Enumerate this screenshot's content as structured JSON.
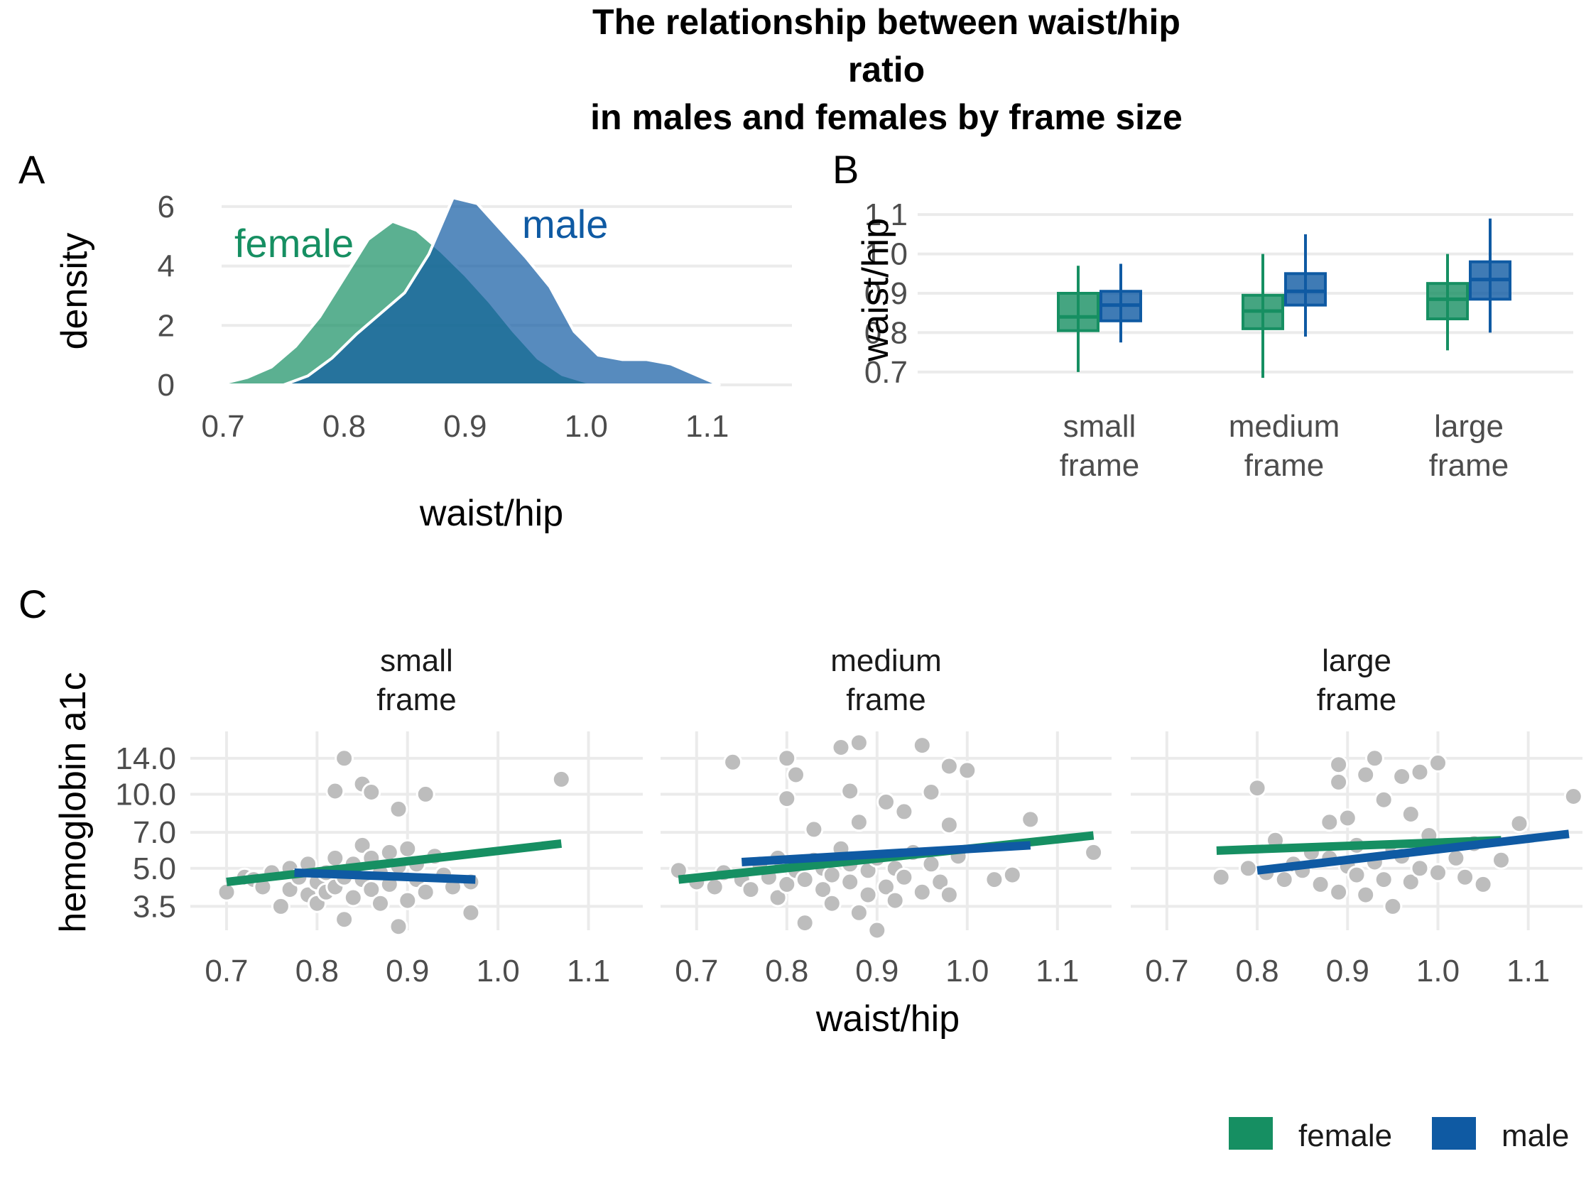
{
  "title_lines": [
    "The relationship between waist/hip",
    "ratio",
    "in males and females by frame size"
  ],
  "colors": {
    "female": "#168f62",
    "male": "#0f5aa3",
    "point": "#bdbdbd",
    "grid": "#ebebeb"
  },
  "legend": [
    {
      "key": "female",
      "label": "female"
    },
    {
      "key": "male",
      "label": "male"
    }
  ],
  "chart_data": [
    {
      "panel": "A",
      "type": "area",
      "xlabel": "waist/hip",
      "ylabel": "density",
      "xlim": [
        0.68,
        1.17
      ],
      "ylim": [
        0,
        6.5
      ],
      "xticks": [
        "0.7",
        "0.8",
        "0.9",
        "1.0",
        "1.1"
      ],
      "yticks": [
        "0",
        "2",
        "4",
        "6"
      ],
      "series": [
        {
          "name": "female",
          "label": "female",
          "x": [
            0.68,
            0.7,
            0.72,
            0.74,
            0.76,
            0.78,
            0.8,
            0.82,
            0.84,
            0.86,
            0.88,
            0.9,
            0.92,
            0.94,
            0.96,
            0.98,
            1.0,
            1.02
          ],
          "y": [
            0.0,
            0.05,
            0.25,
            0.6,
            1.3,
            2.3,
            3.6,
            4.9,
            5.5,
            5.2,
            4.5,
            3.7,
            2.8,
            1.8,
            0.9,
            0.35,
            0.1,
            0.0
          ]
        },
        {
          "name": "male",
          "label": "male",
          "x": [
            0.75,
            0.77,
            0.79,
            0.81,
            0.83,
            0.85,
            0.87,
            0.89,
            0.91,
            0.93,
            0.95,
            0.97,
            0.99,
            1.01,
            1.03,
            1.05,
            1.07,
            1.09,
            1.11
          ],
          "y": [
            0.0,
            0.3,
            0.9,
            1.7,
            2.4,
            3.1,
            4.4,
            6.3,
            6.1,
            5.2,
            4.3,
            3.3,
            1.8,
            1.0,
            0.85,
            0.85,
            0.7,
            0.35,
            0.0
          ]
        }
      ]
    },
    {
      "panel": "B",
      "type": "box",
      "ylabel": "waist/hip",
      "ylim": [
        0.66,
        1.14
      ],
      "yticks": [
        "0.7",
        "0.8",
        "0.9",
        "1.0",
        "1.1"
      ],
      "categories": [
        [
          "small",
          "frame"
        ],
        [
          "medium",
          "frame"
        ],
        [
          "large",
          "frame"
        ]
      ],
      "series": [
        {
          "name": "female",
          "boxes": [
            {
              "min": 0.7,
              "q1": 0.805,
              "median": 0.84,
              "q3": 0.9,
              "max": 0.97
            },
            {
              "min": 0.685,
              "q1": 0.81,
              "median": 0.855,
              "q3": 0.895,
              "max": 1.0
            },
            {
              "min": 0.755,
              "q1": 0.835,
              "median": 0.885,
              "q3": 0.925,
              "max": 1.0
            }
          ]
        },
        {
          "name": "male",
          "boxes": [
            {
              "min": 0.775,
              "q1": 0.83,
              "median": 0.87,
              "q3": 0.905,
              "max": 0.975
            },
            {
              "min": 0.79,
              "q1": 0.87,
              "median": 0.905,
              "q3": 0.95,
              "max": 1.05
            },
            {
              "min": 0.8,
              "q1": 0.885,
              "median": 0.935,
              "q3": 0.98,
              "max": 1.09
            }
          ]
        }
      ]
    },
    {
      "panel": "C",
      "type": "scatter",
      "xlabel": "waist/hip",
      "ylabel": "hemoglobin a1c",
      "xlim": [
        0.66,
        1.16
      ],
      "ylim_log": [
        2.8,
        18.0
      ],
      "xticks": [
        "0.7",
        "0.8",
        "0.9",
        "1.0",
        "1.1"
      ],
      "yticks": [
        "3.5",
        "5.0",
        "7.0",
        "10.0",
        "14.0"
      ],
      "facets": [
        {
          "strip": [
            "small",
            "frame"
          ],
          "points": [
            [
              0.7,
              4.0
            ],
            [
              0.72,
              4.6
            ],
            [
              0.73,
              4.5
            ],
            [
              0.74,
              4.2
            ],
            [
              0.75,
              4.8
            ],
            [
              0.76,
              3.5
            ],
            [
              0.77,
              4.1
            ],
            [
              0.77,
              5.0
            ],
            [
              0.78,
              4.6
            ],
            [
              0.79,
              3.9
            ],
            [
              0.79,
              5.2
            ],
            [
              0.8,
              3.6
            ],
            [
              0.8,
              4.4
            ],
            [
              0.81,
              4.0
            ],
            [
              0.81,
              4.8
            ],
            [
              0.82,
              5.5
            ],
            [
              0.82,
              4.2
            ],
            [
              0.82,
              10.3
            ],
            [
              0.83,
              14.0
            ],
            [
              0.83,
              3.1
            ],
            [
              0.83,
              4.6
            ],
            [
              0.84,
              5.2
            ],
            [
              0.84,
              3.8
            ],
            [
              0.85,
              4.5
            ],
            [
              0.85,
              6.2
            ],
            [
              0.85,
              11.0
            ],
            [
              0.86,
              10.2
            ],
            [
              0.86,
              5.5
            ],
            [
              0.86,
              4.1
            ],
            [
              0.87,
              3.6
            ],
            [
              0.87,
              4.8
            ],
            [
              0.88,
              5.8
            ],
            [
              0.88,
              4.3
            ],
            [
              0.89,
              8.7
            ],
            [
              0.89,
              2.9
            ],
            [
              0.89,
              5.1
            ],
            [
              0.9,
              6.0
            ],
            [
              0.9,
              3.7
            ],
            [
              0.91,
              4.5
            ],
            [
              0.91,
              5.2
            ],
            [
              0.92,
              10.0
            ],
            [
              0.92,
              4.0
            ],
            [
              0.93,
              5.6
            ],
            [
              0.94,
              4.7
            ],
            [
              0.95,
              4.2
            ],
            [
              0.97,
              4.4
            ],
            [
              0.97,
              3.3
            ],
            [
              1.07,
              11.5
            ]
          ],
          "lines": [
            {
              "series": "female",
              "x": [
                0.7,
                1.07
              ],
              "y": [
                4.4,
                6.3
              ]
            },
            {
              "series": "male",
              "x": [
                0.775,
                0.975
              ],
              "y": [
                4.8,
                4.5
              ]
            }
          ]
        },
        {
          "strip": [
            "medium",
            "frame"
          ],
          "points": [
            [
              0.68,
              4.9
            ],
            [
              0.7,
              4.4
            ],
            [
              0.72,
              4.2
            ],
            [
              0.73,
              4.8
            ],
            [
              0.74,
              13.5
            ],
            [
              0.75,
              4.5
            ],
            [
              0.76,
              4.1
            ],
            [
              0.77,
              5.2
            ],
            [
              0.78,
              4.6
            ],
            [
              0.79,
              3.8
            ],
            [
              0.79,
              5.5
            ],
            [
              0.8,
              4.3
            ],
            [
              0.8,
              9.6
            ],
            [
              0.8,
              14.0
            ],
            [
              0.81,
              4.9
            ],
            [
              0.81,
              12.0
            ],
            [
              0.82,
              3.0
            ],
            [
              0.82,
              4.5
            ],
            [
              0.83,
              5.4
            ],
            [
              0.83,
              7.2
            ],
            [
              0.84,
              4.1
            ],
            [
              0.84,
              5.0
            ],
            [
              0.85,
              4.7
            ],
            [
              0.85,
              3.6
            ],
            [
              0.86,
              6.0
            ],
            [
              0.86,
              15.5
            ],
            [
              0.87,
              10.3
            ],
            [
              0.87,
              4.4
            ],
            [
              0.87,
              5.2
            ],
            [
              0.88,
              3.3
            ],
            [
              0.88,
              7.7
            ],
            [
              0.88,
              16.2
            ],
            [
              0.89,
              4.9
            ],
            [
              0.89,
              3.9
            ],
            [
              0.9,
              5.5
            ],
            [
              0.9,
              2.8
            ],
            [
              0.91,
              4.2
            ],
            [
              0.91,
              9.3
            ],
            [
              0.92,
              5.0
            ],
            [
              0.92,
              3.7
            ],
            [
              0.93,
              8.5
            ],
            [
              0.93,
              4.6
            ],
            [
              0.94,
              5.8
            ],
            [
              0.95,
              4.0
            ],
            [
              0.95,
              15.8
            ],
            [
              0.96,
              10.2
            ],
            [
              0.96,
              5.2
            ],
            [
              0.97,
              4.4
            ],
            [
              0.98,
              13.0
            ],
            [
              0.98,
              7.5
            ],
            [
              0.98,
              3.9
            ],
            [
              0.99,
              5.6
            ],
            [
              1.0,
              12.5
            ],
            [
              1.03,
              4.5
            ],
            [
              1.05,
              4.7
            ],
            [
              1.07,
              7.9
            ],
            [
              1.14,
              5.8
            ]
          ],
          "lines": [
            {
              "series": "female",
              "x": [
                0.68,
                1.14
              ],
              "y": [
                4.5,
                6.8
              ]
            },
            {
              "series": "male",
              "x": [
                0.75,
                1.07
              ],
              "y": [
                5.3,
                6.2
              ]
            }
          ]
        },
        {
          "strip": [
            "large",
            "frame"
          ],
          "points": [
            [
              0.76,
              4.6
            ],
            [
              0.79,
              5.0
            ],
            [
              0.8,
              10.6
            ],
            [
              0.81,
              4.8
            ],
            [
              0.82,
              6.5
            ],
            [
              0.83,
              4.5
            ],
            [
              0.84,
              5.2
            ],
            [
              0.85,
              4.9
            ],
            [
              0.86,
              5.8
            ],
            [
              0.87,
              4.3
            ],
            [
              0.88,
              5.5
            ],
            [
              0.88,
              7.7
            ],
            [
              0.89,
              4.0
            ],
            [
              0.89,
              13.2
            ],
            [
              0.89,
              11.2
            ],
            [
              0.9,
              5.1
            ],
            [
              0.9,
              8.0
            ],
            [
              0.91,
              4.7
            ],
            [
              0.91,
              6.2
            ],
            [
              0.92,
              3.9
            ],
            [
              0.92,
              12.0
            ],
            [
              0.93,
              14.0
            ],
            [
              0.93,
              5.3
            ],
            [
              0.94,
              4.5
            ],
            [
              0.94,
              9.5
            ],
            [
              0.95,
              6.0
            ],
            [
              0.95,
              3.5
            ],
            [
              0.96,
              5.6
            ],
            [
              0.96,
              11.8
            ],
            [
              0.97,
              4.4
            ],
            [
              0.97,
              8.3
            ],
            [
              0.98,
              5.0
            ],
            [
              0.98,
              12.3
            ],
            [
              0.99,
              6.8
            ],
            [
              1.0,
              13.4
            ],
            [
              1.0,
              4.8
            ],
            [
              1.02,
              5.5
            ],
            [
              1.03,
              4.6
            ],
            [
              1.04,
              6.3
            ],
            [
              1.05,
              4.3
            ],
            [
              1.07,
              5.4
            ],
            [
              1.09,
              7.6
            ],
            [
              1.15,
              9.8
            ]
          ],
          "lines": [
            {
              "series": "female",
              "x": [
                0.755,
                1.07
              ],
              "y": [
                5.9,
                6.5
              ]
            },
            {
              "series": "male",
              "x": [
                0.8,
                1.145
              ],
              "y": [
                4.9,
                6.9
              ]
            }
          ]
        }
      ]
    }
  ]
}
